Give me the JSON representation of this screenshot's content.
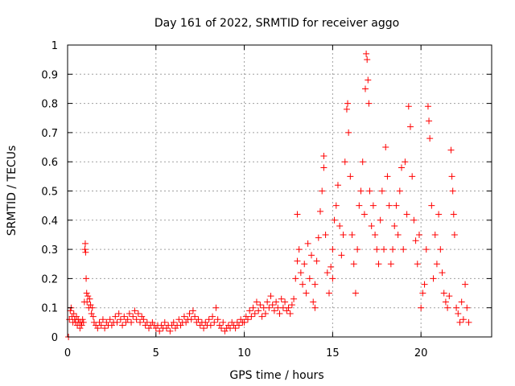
{
  "chart_data": {
    "type": "scatter",
    "title": "Day 161 of 2022, SRMTID for receiver aggo",
    "xlabel": "GPS time / hours",
    "ylabel": "SRMTID / TECUs",
    "xlim": [
      0,
      24
    ],
    "ylim": [
      0,
      1
    ],
    "xticks": [
      0,
      5,
      10,
      15,
      20
    ],
    "yticks": [
      0,
      0.1,
      0.2,
      0.3,
      0.4,
      0.5,
      0.6,
      0.7,
      0.8,
      0.9,
      1
    ],
    "xtick_labels": [
      "0",
      "5",
      "10",
      "15",
      "20"
    ],
    "ytick_labels": [
      "0",
      "0.1",
      "0.2",
      "0.3",
      "0.4",
      "0.5",
      "0.6",
      "0.7",
      "0.8",
      "0.9",
      "1"
    ],
    "grid": true,
    "marker": "+",
    "series": [
      {
        "name": "SRMTID",
        "color": "#ff0000",
        "points": [
          [
            0.05,
            0.0
          ],
          [
            0.1,
            0.06
          ],
          [
            0.15,
            0.09
          ],
          [
            0.2,
            0.1
          ],
          [
            0.25,
            0.07
          ],
          [
            0.3,
            0.05
          ],
          [
            0.35,
            0.08
          ],
          [
            0.4,
            0.06
          ],
          [
            0.45,
            0.05
          ],
          [
            0.5,
            0.07
          ],
          [
            0.55,
            0.04
          ],
          [
            0.6,
            0.06
          ],
          [
            0.65,
            0.05
          ],
          [
            0.7,
            0.03
          ],
          [
            0.75,
            0.05
          ],
          [
            0.8,
            0.04
          ],
          [
            0.85,
            0.06
          ],
          [
            0.9,
            0.05
          ],
          [
            0.95,
            0.12
          ],
          [
            0.98,
            0.3
          ],
          [
            1.0,
            0.32
          ],
          [
            1.02,
            0.29
          ],
          [
            1.05,
            0.2
          ],
          [
            1.08,
            0.15
          ],
          [
            1.1,
            0.12
          ],
          [
            1.15,
            0.14
          ],
          [
            1.2,
            0.1
          ],
          [
            1.25,
            0.13
          ],
          [
            1.3,
            0.11
          ],
          [
            1.35,
            0.08
          ],
          [
            1.4,
            0.1
          ],
          [
            1.45,
            0.07
          ],
          [
            1.5,
            0.05
          ],
          [
            1.6,
            0.04
          ],
          [
            1.7,
            0.03
          ],
          [
            1.8,
            0.05
          ],
          [
            1.9,
            0.04
          ],
          [
            2.0,
            0.06
          ],
          [
            2.1,
            0.03
          ],
          [
            2.2,
            0.05
          ],
          [
            2.3,
            0.04
          ],
          [
            2.4,
            0.06
          ],
          [
            2.5,
            0.04
          ],
          [
            2.6,
            0.05
          ],
          [
            2.7,
            0.07
          ],
          [
            2.8,
            0.05
          ],
          [
            2.9,
            0.08
          ],
          [
            3.0,
            0.06
          ],
          [
            3.1,
            0.04
          ],
          [
            3.2,
            0.07
          ],
          [
            3.3,
            0.05
          ],
          [
            3.4,
            0.06
          ],
          [
            3.5,
            0.08
          ],
          [
            3.6,
            0.05
          ],
          [
            3.7,
            0.07
          ],
          [
            3.8,
            0.09
          ],
          [
            3.9,
            0.06
          ],
          [
            4.0,
            0.08
          ],
          [
            4.1,
            0.05
          ],
          [
            4.2,
            0.07
          ],
          [
            4.3,
            0.06
          ],
          [
            4.4,
            0.04
          ],
          [
            4.5,
            0.05
          ],
          [
            4.6,
            0.03
          ],
          [
            4.7,
            0.04
          ],
          [
            4.8,
            0.05
          ],
          [
            4.9,
            0.04
          ],
          [
            5.0,
            0.03
          ],
          [
            5.1,
            0.04
          ],
          [
            5.2,
            0.02
          ],
          [
            5.3,
            0.04
          ],
          [
            5.4,
            0.03
          ],
          [
            5.5,
            0.05
          ],
          [
            5.6,
            0.03
          ],
          [
            5.7,
            0.04
          ],
          [
            5.8,
            0.02
          ],
          [
            5.9,
            0.04
          ],
          [
            6.0,
            0.05
          ],
          [
            6.1,
            0.03
          ],
          [
            6.2,
            0.04
          ],
          [
            6.3,
            0.06
          ],
          [
            6.4,
            0.04
          ],
          [
            6.5,
            0.05
          ],
          [
            6.6,
            0.07
          ],
          [
            6.7,
            0.05
          ],
          [
            6.8,
            0.06
          ],
          [
            6.9,
            0.08
          ],
          [
            7.0,
            0.06
          ],
          [
            7.1,
            0.09
          ],
          [
            7.2,
            0.07
          ],
          [
            7.3,
            0.05
          ],
          [
            7.4,
            0.06
          ],
          [
            7.5,
            0.04
          ],
          [
            7.6,
            0.05
          ],
          [
            7.7,
            0.03
          ],
          [
            7.8,
            0.05
          ],
          [
            7.9,
            0.04
          ],
          [
            8.0,
            0.06
          ],
          [
            8.1,
            0.04
          ],
          [
            8.2,
            0.07
          ],
          [
            8.3,
            0.05
          ],
          [
            8.4,
            0.1
          ],
          [
            8.5,
            0.06
          ],
          [
            8.6,
            0.04
          ],
          [
            8.7,
            0.03
          ],
          [
            8.8,
            0.05
          ],
          [
            8.9,
            0.02
          ],
          [
            9.0,
            0.03
          ],
          [
            9.1,
            0.04
          ],
          [
            9.2,
            0.03
          ],
          [
            9.3,
            0.05
          ],
          [
            9.4,
            0.04
          ],
          [
            9.5,
            0.03
          ],
          [
            9.6,
            0.05
          ],
          [
            9.7,
            0.04
          ],
          [
            9.8,
            0.06
          ],
          [
            9.9,
            0.05
          ],
          [
            10.0,
            0.05
          ],
          [
            10.1,
            0.07
          ],
          [
            10.2,
            0.06
          ],
          [
            10.3,
            0.09
          ],
          [
            10.4,
            0.07
          ],
          [
            10.5,
            0.1
          ],
          [
            10.6,
            0.08
          ],
          [
            10.7,
            0.12
          ],
          [
            10.8,
            0.09
          ],
          [
            10.9,
            0.11
          ],
          [
            11.0,
            0.07
          ],
          [
            11.1,
            0.1
          ],
          [
            11.2,
            0.08
          ],
          [
            11.3,
            0.12
          ],
          [
            11.4,
            0.1
          ],
          [
            11.5,
            0.14
          ],
          [
            11.6,
            0.11
          ],
          [
            11.7,
            0.09
          ],
          [
            11.8,
            0.12
          ],
          [
            11.9,
            0.1
          ],
          [
            12.0,
            0.08
          ],
          [
            12.1,
            0.13
          ],
          [
            12.2,
            0.1
          ],
          [
            12.3,
            0.12
          ],
          [
            12.4,
            0.09
          ],
          [
            12.5,
            0.1
          ],
          [
            12.6,
            0.08
          ],
          [
            12.7,
            0.11
          ],
          [
            12.8,
            0.13
          ],
          [
            12.9,
            0.2
          ],
          [
            13.0,
            0.26
          ],
          [
            13.0,
            0.42
          ],
          [
            13.1,
            0.3
          ],
          [
            13.2,
            0.22
          ],
          [
            13.3,
            0.18
          ],
          [
            13.4,
            0.25
          ],
          [
            13.5,
            0.15
          ],
          [
            13.6,
            0.32
          ],
          [
            13.7,
            0.2
          ],
          [
            13.8,
            0.28
          ],
          [
            13.9,
            0.12
          ],
          [
            14.0,
            0.18
          ],
          [
            14.0,
            0.1
          ],
          [
            14.1,
            0.26
          ],
          [
            14.2,
            0.34
          ],
          [
            14.3,
            0.43
          ],
          [
            14.4,
            0.5
          ],
          [
            14.5,
            0.58
          ],
          [
            14.5,
            0.62
          ],
          [
            14.6,
            0.35
          ],
          [
            14.7,
            0.22
          ],
          [
            14.8,
            0.15
          ],
          [
            14.9,
            0.24
          ],
          [
            15.0,
            0.2
          ],
          [
            15.0,
            0.3
          ],
          [
            15.1,
            0.4
          ],
          [
            15.2,
            0.45
          ],
          [
            15.3,
            0.52
          ],
          [
            15.4,
            0.38
          ],
          [
            15.5,
            0.28
          ],
          [
            15.6,
            0.35
          ],
          [
            15.7,
            0.6
          ],
          [
            15.8,
            0.78
          ],
          [
            15.85,
            0.8
          ],
          [
            15.9,
            0.7
          ],
          [
            16.0,
            0.55
          ],
          [
            16.1,
            0.35
          ],
          [
            16.2,
            0.25
          ],
          [
            16.3,
            0.15
          ],
          [
            16.4,
            0.3
          ],
          [
            16.5,
            0.45
          ],
          [
            16.6,
            0.5
          ],
          [
            16.7,
            0.6
          ],
          [
            16.8,
            0.42
          ],
          [
            16.85,
            0.85
          ],
          [
            16.9,
            0.97
          ],
          [
            16.95,
            0.95
          ],
          [
            17.0,
            0.88
          ],
          [
            17.05,
            0.8
          ],
          [
            17.1,
            0.5
          ],
          [
            17.2,
            0.38
          ],
          [
            17.3,
            0.45
          ],
          [
            17.4,
            0.35
          ],
          [
            17.5,
            0.3
          ],
          [
            17.6,
            0.25
          ],
          [
            17.7,
            0.4
          ],
          [
            17.8,
            0.5
          ],
          [
            17.9,
            0.3
          ],
          [
            18.0,
            0.65
          ],
          [
            18.1,
            0.55
          ],
          [
            18.2,
            0.45
          ],
          [
            18.3,
            0.25
          ],
          [
            18.4,
            0.3
          ],
          [
            18.5,
            0.38
          ],
          [
            18.6,
            0.45
          ],
          [
            18.7,
            0.35
          ],
          [
            18.8,
            0.5
          ],
          [
            18.9,
            0.58
          ],
          [
            19.0,
            0.3
          ],
          [
            19.1,
            0.6
          ],
          [
            19.2,
            0.42
          ],
          [
            19.3,
            0.79
          ],
          [
            19.4,
            0.72
          ],
          [
            19.5,
            0.55
          ],
          [
            19.6,
            0.4
          ],
          [
            19.7,
            0.33
          ],
          [
            19.8,
            0.25
          ],
          [
            19.9,
            0.35
          ],
          [
            20.0,
            0.1
          ],
          [
            20.1,
            0.15
          ],
          [
            20.2,
            0.18
          ],
          [
            20.3,
            0.3
          ],
          [
            20.4,
            0.79
          ],
          [
            20.45,
            0.74
          ],
          [
            20.5,
            0.68
          ],
          [
            20.6,
            0.45
          ],
          [
            20.7,
            0.2
          ],
          [
            20.8,
            0.35
          ],
          [
            20.9,
            0.25
          ],
          [
            21.0,
            0.42
          ],
          [
            21.1,
            0.3
          ],
          [
            21.2,
            0.22
          ],
          [
            21.3,
            0.15
          ],
          [
            21.4,
            0.12
          ],
          [
            21.5,
            0.1
          ],
          [
            21.6,
            0.14
          ],
          [
            21.7,
            0.64
          ],
          [
            21.75,
            0.55
          ],
          [
            21.8,
            0.5
          ],
          [
            21.85,
            0.42
          ],
          [
            21.9,
            0.35
          ],
          [
            22.0,
            0.1
          ],
          [
            22.1,
            0.08
          ],
          [
            22.2,
            0.05
          ],
          [
            22.3,
            0.12
          ],
          [
            22.4,
            0.06
          ],
          [
            22.5,
            0.18
          ],
          [
            22.6,
            0.1
          ],
          [
            22.7,
            0.05
          ]
        ]
      }
    ]
  }
}
